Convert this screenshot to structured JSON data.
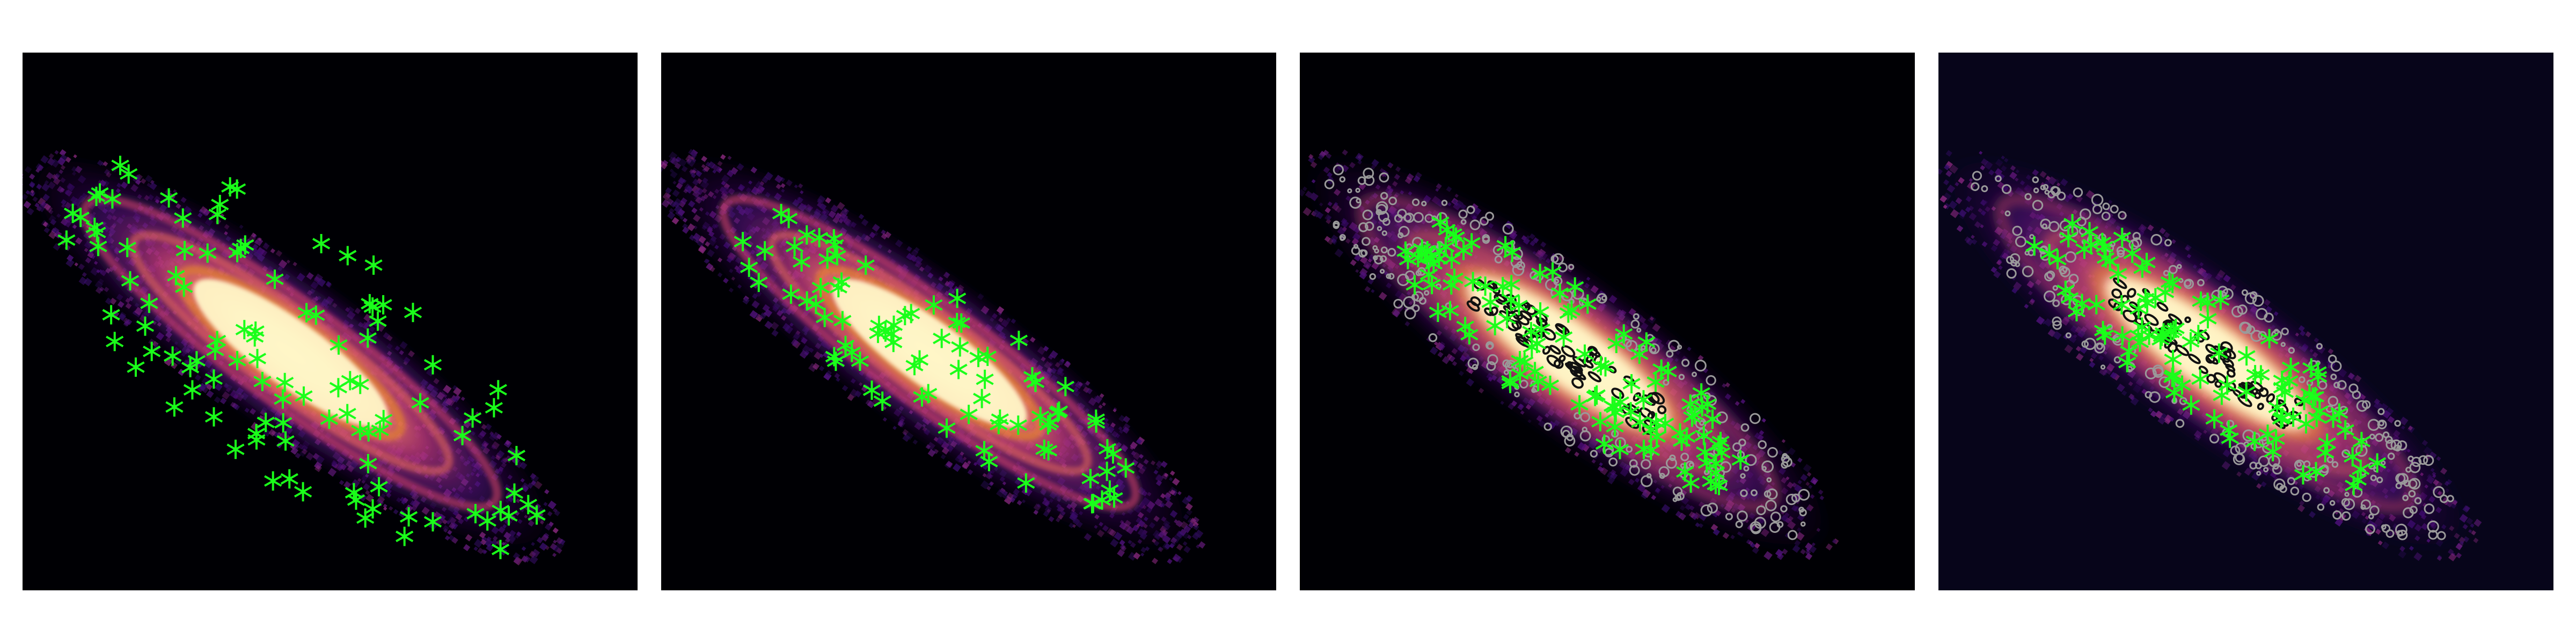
{
  "figure": {
    "panel_count": 4,
    "colormap": "magma",
    "marker": {
      "shape": "asterisk",
      "color": "#1aff1a"
    },
    "contour_colors": {
      "outer": "#9a9a9a",
      "inner": "#111111"
    }
  },
  "panels": [
    {
      "name": "panel-1",
      "background": "#000004",
      "markers": true,
      "contours": false,
      "smooth": false
    },
    {
      "name": "panel-2",
      "background": "#000004",
      "markers": true,
      "contours": false,
      "smooth": false
    },
    {
      "name": "panel-3",
      "background": "#000004",
      "markers": true,
      "contours": true,
      "smooth": true
    },
    {
      "name": "panel-4",
      "background": "#07051a",
      "markers": true,
      "contours": true,
      "smooth": true
    }
  ]
}
